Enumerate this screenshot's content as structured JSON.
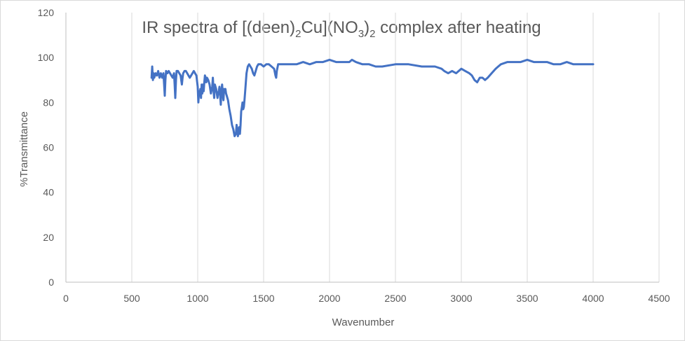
{
  "chart_data": {
    "type": "line",
    "title": {
      "t1": "IR spectra of [(deen)",
      "s1": "2",
      "t2": "Cu](NO",
      "s2": "3",
      "t3": ")",
      "s3": "2",
      "t4": " complex after heating"
    },
    "xlabel": "Wavenumber",
    "ylabel": "%Transmittance",
    "xlim": [
      0,
      4500
    ],
    "ylim": [
      0,
      120
    ],
    "x_ticks": [
      "0",
      "500",
      "1000",
      "1500",
      "2000",
      "2500",
      "3000",
      "3500",
      "4000",
      "4500"
    ],
    "y_ticks": [
      "0",
      "20",
      "40",
      "60",
      "80",
      "100",
      "120"
    ],
    "grid": "vertical",
    "legend": "none",
    "color": "#4472c4",
    "series": [
      {
        "x": [
          650,
          655,
          660,
          665,
          670,
          680,
          690,
          700,
          710,
          720,
          730,
          740,
          745,
          750,
          755,
          760,
          770,
          780,
          790,
          800,
          810,
          820,
          825,
          830,
          835,
          840,
          850,
          860,
          870,
          880,
          885,
          890,
          900,
          910,
          920,
          930,
          940,
          950,
          960,
          970,
          980,
          990,
          1000,
          1005,
          1010,
          1015,
          1020,
          1025,
          1030,
          1035,
          1040,
          1045,
          1050,
          1055,
          1060,
          1065,
          1070,
          1080,
          1090,
          1100,
          1110,
          1115,
          1120,
          1125,
          1130,
          1140,
          1150,
          1155,
          1160,
          1165,
          1170,
          1175,
          1180,
          1185,
          1190,
          1195,
          1200,
          1205,
          1210,
          1215,
          1220,
          1230,
          1240,
          1250,
          1260,
          1270,
          1280,
          1290,
          1295,
          1300,
          1305,
          1310,
          1315,
          1320,
          1325,
          1330,
          1335,
          1340,
          1345,
          1350,
          1355,
          1360,
          1370,
          1380,
          1390,
          1400,
          1410,
          1420,
          1430,
          1440,
          1450,
          1460,
          1470,
          1480,
          1500,
          1520,
          1540,
          1560,
          1580,
          1590,
          1595,
          1600,
          1610,
          1620,
          1650,
          1700,
          1750,
          1800,
          1850,
          1900,
          1950,
          2000,
          2050,
          2100,
          2150,
          2170,
          2200,
          2250,
          2300,
          2350,
          2400,
          2500,
          2600,
          2700,
          2800,
          2850,
          2870,
          2900,
          2930,
          2960,
          3000,
          3030,
          3060,
          3080,
          3100,
          3120,
          3140,
          3160,
          3180,
          3200,
          3230,
          3260,
          3280,
          3300,
          3350,
          3400,
          3450,
          3500,
          3550,
          3600,
          3650,
          3700,
          3750,
          3800,
          3850,
          3900,
          3950,
          4000
        ],
        "y": [
          91,
          96,
          90,
          93,
          91,
          93,
          92,
          94,
          91,
          93,
          91,
          93,
          88,
          83,
          90,
          94,
          93,
          94,
          93,
          92,
          91,
          93,
          88,
          82,
          90,
          94,
          94,
          93,
          92,
          88,
          91,
          93,
          94,
          94,
          93,
          92,
          91,
          92,
          93,
          94,
          93,
          92,
          87,
          80,
          85,
          83,
          86,
          82,
          88,
          84,
          88,
          85,
          89,
          92,
          91,
          89,
          91,
          90,
          88,
          84,
          87,
          91,
          85,
          82,
          88,
          86,
          82,
          84,
          85,
          87,
          83,
          79,
          85,
          88,
          84,
          81,
          86,
          85,
          86,
          84,
          83,
          81,
          77,
          74,
          70,
          68,
          65,
          66,
          70,
          68,
          65,
          67,
          69,
          66,
          70,
          76,
          78,
          80,
          77,
          78,
          81,
          85,
          93,
          96,
          97,
          96,
          95,
          93,
          92,
          94,
          96,
          97,
          97,
          97,
          96,
          97,
          97,
          96,
          95,
          92,
          91,
          94,
          97,
          97,
          97,
          97,
          97,
          98,
          97,
          98,
          98,
          99,
          98,
          98,
          98,
          99,
          98,
          97,
          97,
          96,
          96,
          97,
          97,
          96,
          96,
          95,
          94,
          93,
          94,
          93,
          95,
          94,
          93,
          92,
          90,
          89,
          91,
          91,
          90,
          91,
          93,
          95,
          96,
          97,
          98,
          98,
          98,
          99,
          98,
          98,
          98,
          97,
          97,
          98,
          97,
          97,
          97,
          97
        ]
      }
    ]
  }
}
